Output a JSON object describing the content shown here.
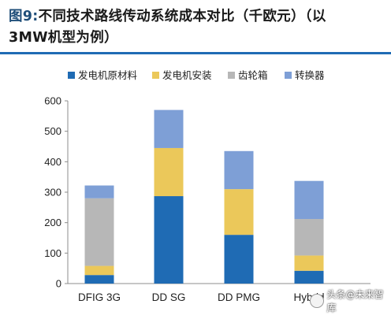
{
  "header": {
    "fig_num": "图9:",
    "title_line1": "不同技术路线传动系统成本对比（千欧元）（以",
    "title_line2": "3MW机型为例）"
  },
  "watermark": {
    "text": "头条@未来智库"
  },
  "colors": {
    "generator_materials": "#1f6bb4",
    "generator_install": "#ebc85a",
    "gearbox": "#b7b7b7",
    "converter": "#7e9fd6",
    "axis": "#8c8c8c",
    "tick_text": "#222222"
  },
  "chart_data": {
    "type": "bar",
    "stacked": true,
    "categories": [
      "DFIG 3G",
      "DD SG",
      "DD PMG",
      "Hybrid"
    ],
    "series": [
      {
        "name": "发电机原材料",
        "values": [
          28,
          287,
          160,
          42
        ]
      },
      {
        "name": "发电机安装",
        "values": [
          30,
          158,
          150,
          50
        ]
      },
      {
        "name": "齿轮箱",
        "values": [
          222,
          0,
          0,
          120
        ]
      },
      {
        "name": "转换器",
        "values": [
          42,
          125,
          125,
          125
        ]
      }
    ],
    "title": "",
    "xlabel": "",
    "ylabel": "",
    "ylim": [
      0,
      600
    ],
    "yticks": [
      "0",
      "100",
      "200",
      "300",
      "400",
      "500",
      "600"
    ],
    "grid": false,
    "legend_position": "top"
  }
}
